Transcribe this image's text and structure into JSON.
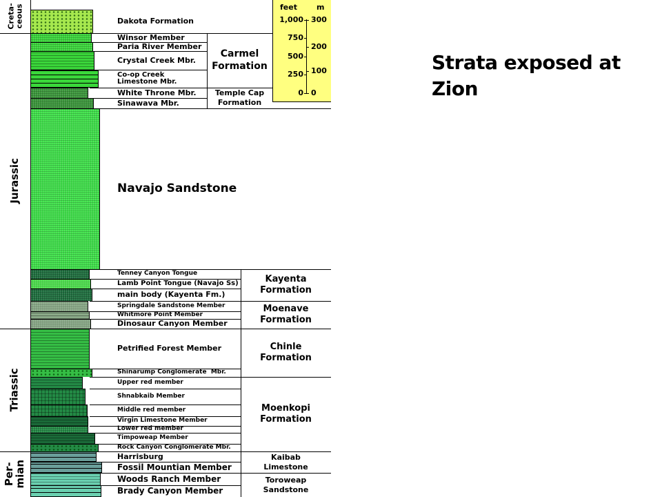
{
  "title": {
    "line1": "Strata exposed at",
    "line2": "Zion"
  },
  "periods": [
    {
      "label": "Creta-\nceous"
    },
    {
      "label": "Jurassic"
    },
    {
      "label": "Triassic"
    },
    {
      "label": "Per-\nmian"
    }
  ],
  "scale": {
    "feet_label": "feet",
    "m_label": "m",
    "feet_ticks": [
      "1,000",
      "750",
      "500",
      "250",
      "0"
    ],
    "m_ticks": [
      "300",
      "200",
      "100",
      "0"
    ],
    "color": "#ffff80"
  },
  "members": [
    {
      "label": "Dakota Formation",
      "color": "#a6e84e",
      "pattern": "dots"
    },
    {
      "label": "Winsor Member",
      "color": "#3ad63a",
      "pattern": "fine"
    },
    {
      "label": "Paria River Member",
      "color": "#3ad63a",
      "pattern": "fine"
    },
    {
      "label": "Crystal Creek Mbr.",
      "color": "#3ad63a",
      "pattern": "dash"
    },
    {
      "label": "Co-op Creek\nLimestone Mbr.",
      "color": "#3ad63a",
      "pattern": "brick"
    },
    {
      "label": "White Throne Mbr.",
      "color": "#3b963b",
      "pattern": "fine"
    },
    {
      "label": "Sinawava Mbr.",
      "color": "#3b963b",
      "pattern": "fine"
    },
    {
      "label": "Navajo Sandstone",
      "color": "#3fe04a",
      "pattern": "fine"
    },
    {
      "label": "Tenney Canyon Tongue",
      "color": "#1e6e3e",
      "pattern": "fine"
    },
    {
      "label": "Lamb Point Tongue (Navajo Ss)",
      "color": "#4ee04e",
      "pattern": "fine"
    },
    {
      "label": "main body (Kayenta Fm.)",
      "color": "#1e6e3e",
      "pattern": "fine"
    },
    {
      "label": "Springdale Sandstone Member",
      "color": "#8aaa88",
      "pattern": "fine"
    },
    {
      "label": "Whitmore Point Member",
      "color": "#8aaa88",
      "pattern": "dash"
    },
    {
      "label": "Dinosaur Canyon Member",
      "color": "#8aaa88",
      "pattern": "fine"
    },
    {
      "label": "Petrified Forest Member",
      "color": "#35be45",
      "pattern": "dash"
    },
    {
      "label": "Shinarump Conglomerate  Mbr.",
      "color": "#35be45",
      "pattern": "dots"
    },
    {
      "label": "Upper red member",
      "color": "#238a45",
      "pattern": "dash"
    },
    {
      "label": "Shnabkaib Member",
      "color": "#238a45",
      "pattern": "vert"
    },
    {
      "label": "Middle red member",
      "color": "#238a45",
      "pattern": "vert"
    },
    {
      "label": "Virgin Limestone Member",
      "color": "#1a6a38",
      "pattern": "dash"
    },
    {
      "label": "Lower red member",
      "color": "#238a45",
      "pattern": "fine"
    },
    {
      "label": "Timpoweap Member",
      "color": "#1a6a38",
      "pattern": "dash"
    },
    {
      "label": "Rock Canyon Conglomerate Mbr.",
      "color": "#238a45",
      "pattern": "dots"
    },
    {
      "label": "Harrisburg",
      "color": "#6a9e9a",
      "pattern": "brick"
    },
    {
      "label": "Fossil Mountian Member",
      "color": "#6a9e9a",
      "pattern": "brick"
    },
    {
      "label": "Woods Ranch Member",
      "color": "#6ad0b0",
      "pattern": "dash"
    },
    {
      "label": "Brady Canyon Member",
      "color": "#6ad0b0",
      "pattern": "brick"
    }
  ],
  "formations": [
    {
      "label": "Carmel\nFormation"
    },
    {
      "label": "Temple Cap\nFormation"
    },
    {
      "label": "Kayenta\nFormation"
    },
    {
      "label": "Moenave\nFormation"
    },
    {
      "label": "Chinle\nFormation"
    },
    {
      "label": "Moenkopi\nFormation"
    },
    {
      "label": "Kaibab\nLimestone"
    },
    {
      "label": "Toroweap\nSandstone"
    }
  ]
}
